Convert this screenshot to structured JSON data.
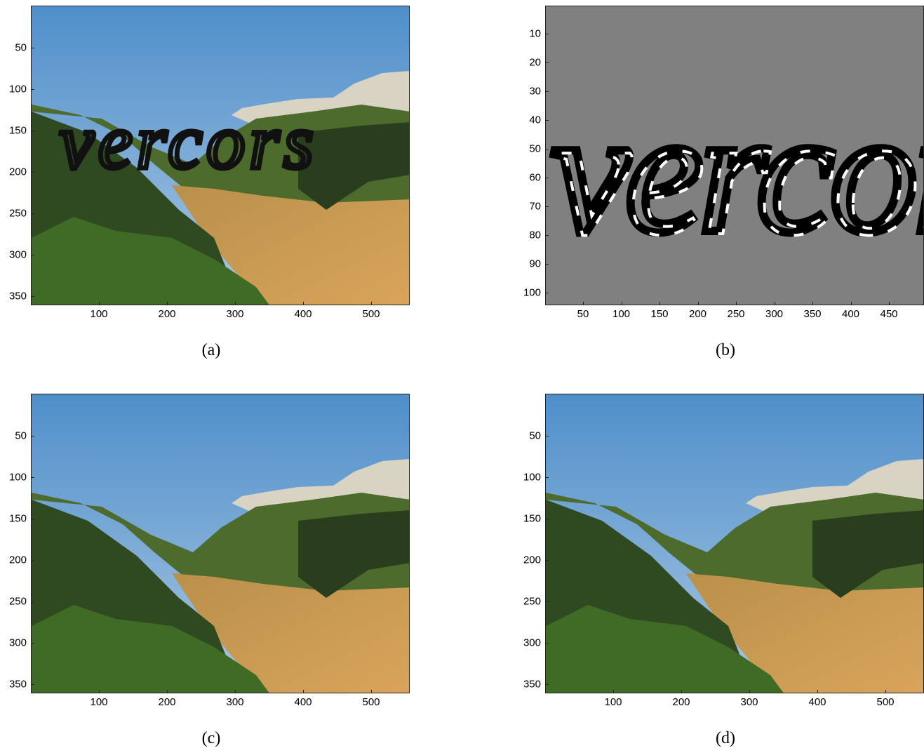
{
  "panels": {
    "a": {
      "caption": "(a)",
      "y_ticks": [
        "50",
        "100",
        "150",
        "200",
        "250",
        "300",
        "350"
      ],
      "x_ticks": [
        "100",
        "200",
        "300",
        "400",
        "500"
      ],
      "overlay_text": "vercors"
    },
    "b": {
      "caption": "(b)",
      "y_ticks": [
        "10",
        "20",
        "30",
        "40",
        "50",
        "60",
        "70",
        "80",
        "90",
        "100"
      ],
      "x_ticks": [
        "50",
        "100",
        "150",
        "200",
        "250",
        "300",
        "350",
        "400",
        "450"
      ],
      "mask_text": "vercors"
    },
    "c": {
      "caption": "(c)",
      "y_ticks": [
        "50",
        "100",
        "150",
        "200",
        "250",
        "300",
        "350"
      ],
      "x_ticks": [
        "100",
        "200",
        "300",
        "400",
        "500"
      ]
    },
    "d": {
      "caption": "(d)",
      "y_ticks": [
        "50",
        "100",
        "150",
        "200",
        "250",
        "300",
        "350"
      ],
      "x_ticks": [
        "100",
        "200",
        "300",
        "400",
        "500"
      ]
    }
  },
  "colors": {
    "sky_top": "#4f8fca",
    "sky_bottom": "#a9c7e2",
    "forest_dark": "#2a3e1d",
    "forest_mid": "#4d6b2c",
    "field": "#c9974f",
    "cliff": "#d9d3c4",
    "mask_gray": "#808080"
  }
}
